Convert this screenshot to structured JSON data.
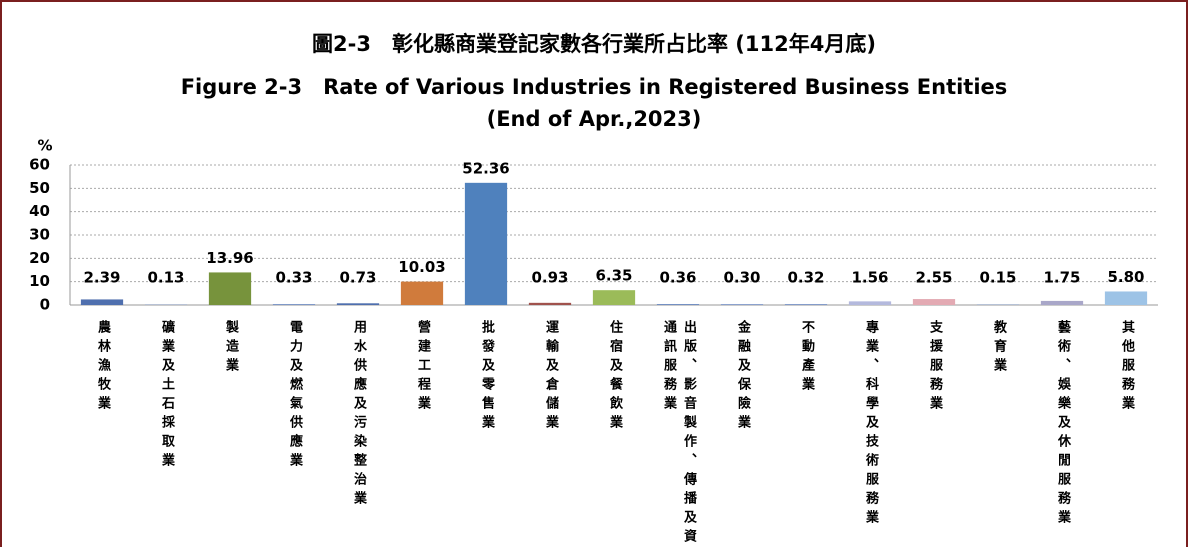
{
  "chart_data": {
    "type": "bar",
    "title": "圖2-3　彰化縣商業登記家數各行業所占比率 (112年4月底)",
    "subtitle": "Figure 2-3　Rate of Various Industries in Registered Business Entities",
    "subtitle2": "(End of Apr.,2023)",
    "y_label": "%",
    "categories": [
      "農林漁牧業",
      "礦業及土石採取業",
      "製造業",
      "電力及燃氣供應業",
      "用水供應及污染整治業",
      "營建工程業",
      "批發及零售業",
      "運輸及倉儲業",
      "住宿及餐飲業",
      "出版、影音製作、傳播及資通訊服務業",
      "金融及保險業",
      "不動產業",
      "專業、科學及技術服務業",
      "支援服務業",
      "教育業",
      "藝術、娛樂及休閒服務業",
      "其他服務業"
    ],
    "values": [
      2.39,
      0.13,
      13.96,
      0.33,
      0.73,
      10.03,
      52.36,
      0.93,
      6.35,
      0.36,
      0.3,
      0.32,
      1.56,
      2.55,
      0.15,
      1.75,
      5.8
    ],
    "value_labels": [
      "2.39",
      "0.13",
      "13.96",
      "0.33",
      "0.73",
      "10.03",
      "52.36",
      "0.93",
      "6.35",
      "0.36",
      "0.30",
      "0.32",
      "1.56",
      "2.55",
      "0.15",
      "1.75",
      "5.80"
    ],
    "colors": [
      "#4f6fae",
      "#5a7bb8",
      "#77933c",
      "#5a7bb8",
      "#4f6fae",
      "#d07b3c",
      "#4f81bd",
      "#a0524d",
      "#9bbb59",
      "#5a7bb8",
      "#5a7bb8",
      "#5a7bb8",
      "#b4b9dd",
      "#e3aab3",
      "#5a7bb8",
      "#a9a7c9",
      "#9dc3e6"
    ],
    "ylim": [
      0,
      60
    ],
    "yticks": [
      0,
      10,
      20,
      30,
      40,
      50,
      60
    ],
    "grid": true
  }
}
